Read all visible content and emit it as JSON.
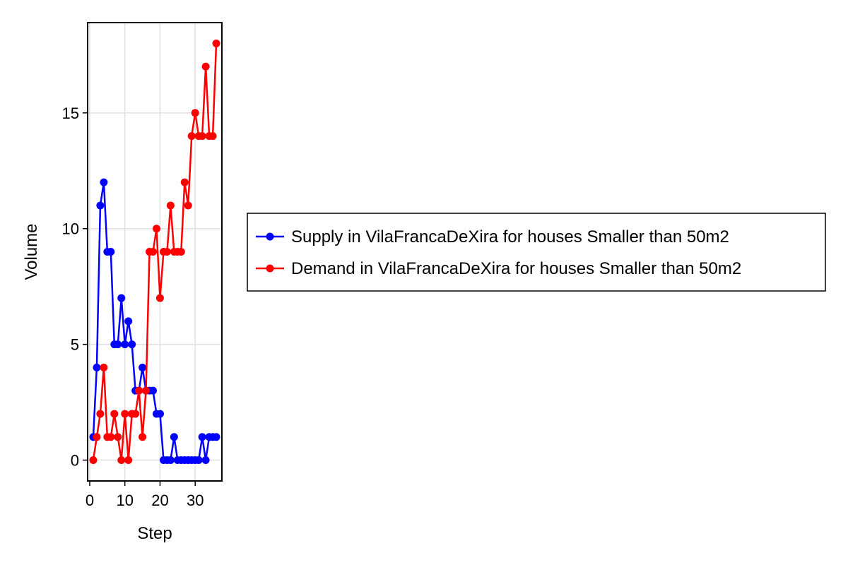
{
  "chart_data": {
    "type": "line",
    "xlabel": "Step",
    "ylabel": "Volume",
    "xlim": [
      -0.6,
      37.6
    ],
    "ylim": [
      -0.9,
      18.9
    ],
    "xticks": [
      0,
      10,
      20,
      30
    ],
    "yticks": [
      0,
      5,
      10,
      15
    ],
    "grid": true,
    "legend_position": "right",
    "x": [
      1,
      2,
      3,
      4,
      5,
      6,
      7,
      8,
      9,
      10,
      11,
      12,
      13,
      14,
      15,
      16,
      17,
      18,
      19,
      20,
      21,
      22,
      23,
      24,
      25,
      26,
      27,
      28,
      29,
      30,
      31,
      32,
      33,
      34,
      35,
      36
    ],
    "series": [
      {
        "name": "Supply in VilaFrancaDeXira for houses Smaller than 50m2",
        "color": "#0000ff",
        "values": [
          1,
          4,
          11,
          12,
          9,
          9,
          5,
          5,
          7,
          5,
          6,
          5,
          3,
          3,
          4,
          3,
          3,
          3,
          2,
          2,
          0,
          0,
          0,
          1,
          0,
          0,
          0,
          0,
          0,
          0,
          0,
          1,
          0,
          1,
          1,
          1
        ]
      },
      {
        "name": "Demand in VilaFrancaDeXira for houses Smaller than 50m2",
        "color": "#ff0000",
        "values": [
          0,
          1,
          2,
          4,
          1,
          1,
          2,
          1,
          0,
          2,
          0,
          2,
          2,
          3,
          1,
          3,
          9,
          9,
          10,
          7,
          9,
          9,
          11,
          9,
          9,
          9,
          12,
          11,
          14,
          15,
          14,
          14,
          17,
          14,
          14,
          18
        ]
      }
    ]
  }
}
